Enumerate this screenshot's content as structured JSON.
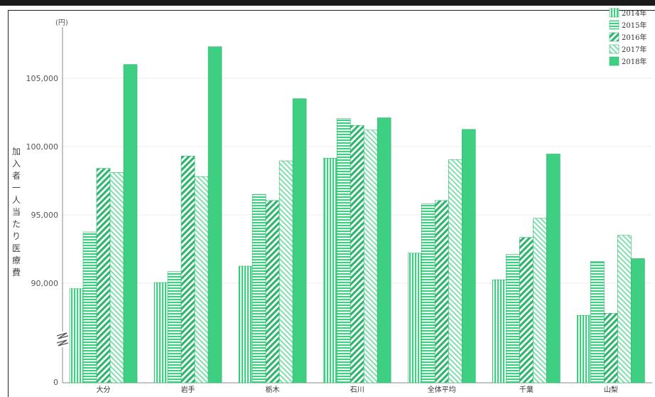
{
  "chart_data": {
    "type": "bar",
    "unit_label": "(円)",
    "ylabel": "加入者一人当たり医療費",
    "categories": [
      "大分",
      "岩手",
      "栃木",
      "石川",
      "全体平均",
      "千葉",
      "山梨"
    ],
    "series": [
      {
        "name": "2014年",
        "pattern": "vertical",
        "values": [
          89600,
          90050,
          91250,
          99150,
          92200,
          90250,
          87650
        ]
      },
      {
        "name": "2015年",
        "pattern": "horizontal",
        "values": [
          93750,
          90850,
          96500,
          102050,
          95800,
          92100,
          91600
        ]
      },
      {
        "name": "2016年",
        "pattern": "diag-down",
        "values": [
          98400,
          99300,
          96050,
          101550,
          96050,
          93350,
          87800
        ]
      },
      {
        "name": "2017年",
        "pattern": "diag-up",
        "values": [
          98100,
          97800,
          98950,
          101200,
          99050,
          94750,
          93500
        ]
      },
      {
        "name": "2018年",
        "pattern": "solid",
        "values": [
          106000,
          107300,
          103500,
          102100,
          101250,
          99450,
          91800
        ]
      }
    ],
    "yticks": [
      90000,
      95000,
      100000,
      105000
    ],
    "ytick_labels": [
      "90,000",
      "95,000",
      "100,000",
      "105,000"
    ],
    "zero_label": "0",
    "ylim": [
      84800,
      109000
    ],
    "axis_break": true,
    "grid": true,
    "legend_position": "top-right",
    "colors": {
      "bar": "#3ecf82",
      "bar_dark": "#2fb56e"
    }
  }
}
